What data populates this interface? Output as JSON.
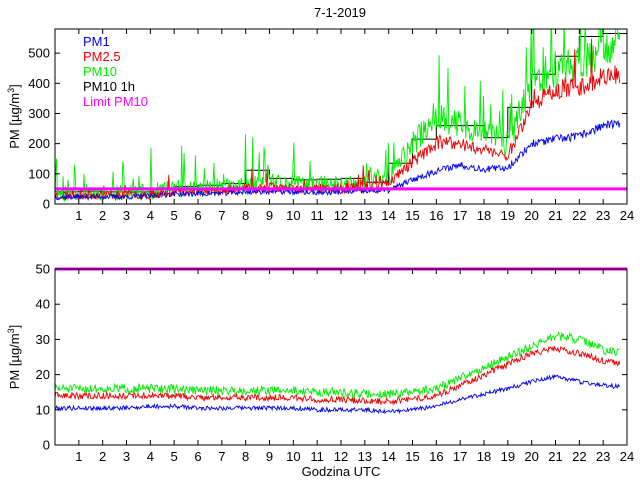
{
  "figure_title": "7-1-2019",
  "chart_data": [
    {
      "type": "line",
      "title": "7-1-2019",
      "xlabel": "",
      "ylabel": "PM [µg/m³]",
      "ylabel_text": "PM [µg/m",
      "ylabel_sup": "3",
      "ylabel_end": "]",
      "xlim": [
        0,
        24
      ],
      "ylim": [
        0,
        580
      ],
      "xticks": [
        1,
        2,
        3,
        4,
        5,
        6,
        7,
        8,
        9,
        10,
        11,
        12,
        13,
        14,
        15,
        16,
        17,
        18,
        19,
        20,
        21,
        22,
        23,
        24
      ],
      "xtick_labels": [
        "1",
        "2",
        "3",
        "4",
        "5",
        "6",
        "7",
        "8",
        "9",
        "10",
        "11",
        "12",
        "13",
        "14",
        "15",
        "16",
        "17",
        "18",
        "19",
        "20",
        "21",
        "22",
        "23",
        "24"
      ],
      "yticks": [
        0,
        100,
        200,
        300,
        400,
        500
      ],
      "ytick_labels": [
        "0",
        "100",
        "200",
        "300",
        "400",
        "500"
      ],
      "legend": [
        {
          "label": "PM1",
          "color": "#0000ee"
        },
        {
          "label": "PM2.5",
          "color": "#ee0000"
        },
        {
          "label": "PM10",
          "color": "#00ee00"
        },
        {
          "label": "PM10 1h",
          "color": "#000000"
        },
        {
          "label": "Limit PM10",
          "color": "#ff00ff"
        }
      ],
      "limit": 50,
      "series": [
        {
          "name": "PM10 1h",
          "color": "#000000",
          "kind": "step",
          "values": [
            40,
            42,
            40,
            40,
            48,
            58,
            62,
            68,
            112,
            85,
            80,
            82,
            85,
            72,
            135,
            215,
            260,
            260,
            220,
            320,
            430,
            490,
            555,
            565
          ]
        },
        {
          "name": "PM10",
          "color": "#00ee00",
          "kind": "noisy",
          "x": [
            0,
            1,
            2,
            3,
            4,
            5,
            6,
            7,
            8,
            9,
            10,
            11,
            12,
            13,
            14,
            15,
            16,
            17,
            18,
            19,
            20,
            21,
            22,
            23,
            23.7
          ],
          "base": [
            35,
            38,
            36,
            35,
            40,
            52,
            52,
            55,
            60,
            70,
            65,
            62,
            65,
            75,
            90,
            195,
            300,
            260,
            240,
            200,
            400,
            450,
            470,
            520,
            540
          ],
          "noise": 25,
          "spikes": 0.09,
          "spike_amp": 110,
          "seed": 11
        },
        {
          "name": "PM2.5",
          "color": "#ee0000",
          "kind": "noisy",
          "x": [
            0,
            1,
            2,
            3,
            4,
            5,
            6,
            7,
            8,
            9,
            10,
            11,
            12,
            13,
            14,
            15,
            16,
            17,
            18,
            19,
            20,
            21,
            22,
            23,
            23.7
          ],
          "base": [
            28,
            32,
            32,
            30,
            33,
            42,
            42,
            45,
            50,
            55,
            52,
            50,
            52,
            58,
            70,
            140,
            200,
            200,
            180,
            160,
            330,
            380,
            390,
            420,
            430
          ],
          "noise": 14,
          "spikes": 0.02,
          "spike_amp": 50,
          "seed": 23
        },
        {
          "name": "PM1",
          "color": "#0000ee",
          "kind": "noisy",
          "x": [
            0,
            1,
            2,
            3,
            4,
            5,
            6,
            7,
            8,
            9,
            10,
            11,
            12,
            13,
            14,
            15,
            16,
            17,
            18,
            19,
            20,
            21,
            22,
            23,
            23.7
          ],
          "base": [
            22,
            24,
            24,
            24,
            26,
            34,
            34,
            36,
            40,
            42,
            40,
            38,
            40,
            42,
            45,
            80,
            110,
            130,
            115,
            120,
            200,
            215,
            225,
            260,
            265
          ],
          "noise": 8,
          "spikes": 0.0,
          "spike_amp": 0,
          "seed": 37
        }
      ]
    },
    {
      "type": "line",
      "title": "",
      "xlabel": "Godzina UTC",
      "ylabel": "PM [µg/m³]",
      "ylabel_text": "PM [µg/m",
      "ylabel_sup": "3",
      "ylabel_end": "]",
      "xlim": [
        0,
        24
      ],
      "ylim": [
        0,
        50
      ],
      "xticks": [
        1,
        2,
        3,
        4,
        5,
        6,
        7,
        8,
        9,
        10,
        11,
        12,
        13,
        14,
        15,
        16,
        17,
        18,
        19,
        20,
        21,
        22,
        23,
        24
      ],
      "xtick_labels": [
        "1",
        "2",
        "3",
        "4",
        "5",
        "6",
        "7",
        "8",
        "9",
        "10",
        "11",
        "12",
        "13",
        "14",
        "15",
        "16",
        "17",
        "18",
        "19",
        "20",
        "21",
        "22",
        "23",
        "24"
      ],
      "yticks": [
        0,
        10,
        20,
        30,
        40,
        50
      ],
      "ytick_labels": [
        "0",
        "10",
        "20",
        "30",
        "40",
        "50"
      ],
      "limit": 50,
      "series": [
        {
          "name": "PM10",
          "color": "#00ee00",
          "kind": "noisy",
          "x": [
            0,
            1,
            2,
            3,
            4,
            5,
            6,
            7,
            8,
            9,
            10,
            11,
            12,
            13,
            14,
            15,
            16,
            17,
            18,
            19,
            20,
            21,
            22,
            23,
            23.7
          ],
          "base": [
            16,
            16,
            16,
            16,
            16,
            16,
            15.5,
            15.5,
            15.5,
            15.5,
            15.5,
            15,
            15,
            14.5,
            14.5,
            15,
            16,
            19,
            22,
            25,
            28,
            31,
            30,
            27,
            26
          ],
          "noise": 1.2,
          "spikes": 0,
          "spike_amp": 0,
          "seed": 51
        },
        {
          "name": "PM2.5",
          "color": "#ee0000",
          "kind": "noisy",
          "x": [
            0,
            1,
            2,
            3,
            4,
            5,
            6,
            7,
            8,
            9,
            10,
            11,
            12,
            13,
            14,
            15,
            16,
            17,
            18,
            19,
            20,
            21,
            22,
            23,
            23.7
          ],
          "base": [
            14,
            14,
            14,
            14,
            14,
            14,
            13.5,
            13.5,
            13.5,
            13.5,
            13.5,
            13,
            13,
            12.5,
            12.5,
            13,
            14,
            17,
            20,
            23,
            26,
            27.5,
            26,
            24,
            23
          ],
          "noise": 0.9,
          "spikes": 0,
          "spike_amp": 0,
          "seed": 63
        },
        {
          "name": "PM1",
          "color": "#0000ee",
          "kind": "noisy",
          "x": [
            0,
            1,
            2,
            3,
            4,
            5,
            6,
            7,
            8,
            9,
            10,
            11,
            12,
            13,
            14,
            15,
            16,
            17,
            18,
            19,
            20,
            21,
            22,
            23,
            23.7
          ],
          "base": [
            10.5,
            10.5,
            10.5,
            10.5,
            11,
            11,
            10.5,
            10.5,
            10.5,
            10.5,
            10.5,
            10,
            10,
            10,
            9.5,
            10,
            11,
            13,
            14.5,
            16,
            18,
            19.5,
            18,
            17,
            16.5
          ],
          "noise": 0.6,
          "spikes": 0,
          "spike_amp": 0,
          "seed": 79
        }
      ]
    }
  ]
}
